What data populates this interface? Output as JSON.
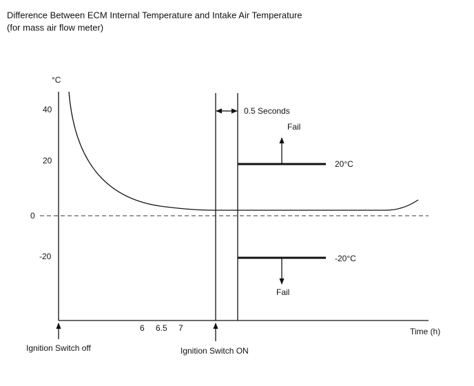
{
  "title": "Difference Between ECM Internal Temperature and Intake Air Temperature",
  "subtitle": "(for mass air flow meter)",
  "y_axis": {
    "unit": "°C",
    "ticks": [
      "40",
      "20",
      "0",
      "-20"
    ]
  },
  "x_axis": {
    "label": "Time (h)",
    "ticks": [
      "6",
      "6.5",
      "7"
    ]
  },
  "annotations": {
    "interval": "0.5 Seconds",
    "fail_upper": "Fail",
    "threshold_upper": "20°C",
    "threshold_lower": "-20°C",
    "fail_lower": "Fail",
    "ignition_off": "Ignition Switch off",
    "ignition_on": "Ignition Switch ON"
  }
}
